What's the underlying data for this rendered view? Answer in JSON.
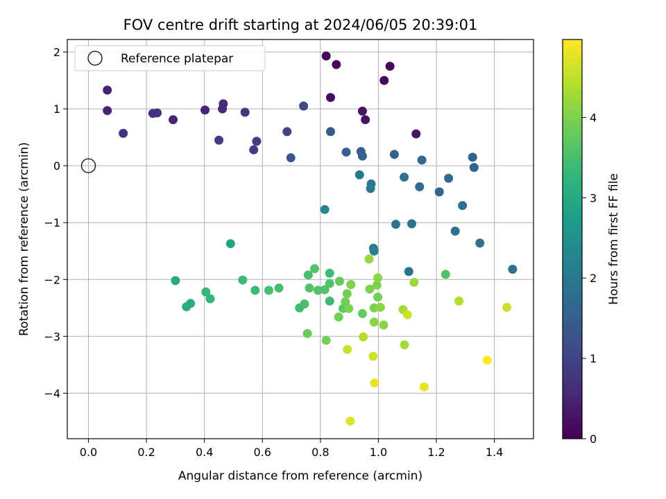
{
  "chart_data": {
    "type": "scatter",
    "title": "FOV centre drift starting at 2024/06/05 20:39:01",
    "xlabel": "Angular distance from reference (arcmin)",
    "ylabel": "Rotation from reference (arcmin)",
    "xlim": [
      -0.073,
      1.535
    ],
    "ylim": [
      -4.8,
      2.22
    ],
    "x_ticks": [
      0.0,
      0.2,
      0.4,
      0.6,
      0.8,
      1.0,
      1.2,
      1.4
    ],
    "x_tick_labels": [
      "0.0",
      "0.2",
      "0.4",
      "0.6",
      "0.8",
      "1.0",
      "1.2",
      "1.4"
    ],
    "y_ticks": [
      2,
      1,
      0,
      -1,
      -2,
      -3,
      -4
    ],
    "y_tick_labels": [
      "2",
      "1",
      "0",
      "−1",
      "−2",
      "−3",
      "−4"
    ],
    "grid": true,
    "legend": {
      "placement": "top-left",
      "entries": [
        "Reference platepar"
      ]
    },
    "reference_point": {
      "x": 0.0,
      "y": 0.0
    },
    "colormap": "viridis",
    "colorbar": {
      "label": "Hours from first FF file",
      "range": [
        0,
        4.97
      ],
      "ticks": [
        0,
        1,
        2,
        3,
        4
      ],
      "tick_labels": [
        "0",
        "1",
        "2",
        "3",
        "4"
      ]
    },
    "point_fields": [
      "x",
      "y",
      "hours"
    ],
    "points": [
      [
        0.82,
        1.93,
        0.1
      ],
      [
        0.855,
        1.78,
        0.1
      ],
      [
        1.04,
        1.75,
        0.1
      ],
      [
        1.02,
        1.5,
        0.15
      ],
      [
        0.835,
        1.2,
        0.2
      ],
      [
        0.945,
        0.96,
        0.25
      ],
      [
        0.955,
        0.81,
        0.25
      ],
      [
        1.13,
        0.56,
        0.3
      ],
      [
        0.065,
        1.33,
        0.5
      ],
      [
        0.065,
        0.97,
        0.5
      ],
      [
        0.12,
        0.57,
        0.7
      ],
      [
        0.222,
        0.92,
        0.7
      ],
      [
        0.237,
        0.93,
        0.7
      ],
      [
        0.292,
        0.81,
        0.5
      ],
      [
        0.402,
        0.98,
        0.5
      ],
      [
        0.465,
        1.09,
        0.6
      ],
      [
        0.462,
        1.0,
        0.6
      ],
      [
        0.54,
        0.94,
        0.8
      ],
      [
        0.45,
        0.45,
        0.9
      ],
      [
        0.58,
        0.43,
        0.9
      ],
      [
        0.57,
        0.28,
        0.9
      ],
      [
        0.685,
        0.6,
        1.0
      ],
      [
        0.742,
        1.05,
        1.1
      ],
      [
        0.698,
        0.14,
        1.3
      ],
      [
        0.835,
        0.6,
        1.4
      ],
      [
        0.889,
        0.24,
        1.5
      ],
      [
        0.94,
        0.25,
        1.5
      ],
      [
        0.945,
        0.17,
        1.5
      ],
      [
        1.055,
        0.2,
        1.6
      ],
      [
        1.15,
        0.1,
        1.7
      ],
      [
        1.325,
        0.15,
        1.6
      ],
      [
        1.33,
        -0.03,
        1.6
      ],
      [
        1.089,
        -0.2,
        1.9
      ],
      [
        1.142,
        -0.37,
        1.7
      ],
      [
        1.242,
        -0.22,
        1.7
      ],
      [
        1.21,
        -0.46,
        1.6
      ],
      [
        0.935,
        -0.16,
        2.0
      ],
      [
        0.975,
        -0.32,
        2.0
      ],
      [
        0.973,
        -0.4,
        2.0
      ],
      [
        1.29,
        -0.7,
        1.8
      ],
      [
        1.06,
        -1.03,
        1.9
      ],
      [
        1.115,
        -1.02,
        1.9
      ],
      [
        1.265,
        -1.15,
        1.8
      ],
      [
        1.35,
        -1.36,
        1.8
      ],
      [
        0.983,
        -1.45,
        2.1
      ],
      [
        0.985,
        -1.5,
        2.1
      ],
      [
        1.105,
        -1.86,
        1.9
      ],
      [
        1.463,
        -1.82,
        1.9
      ],
      [
        0.815,
        -0.77,
        2.3
      ],
      [
        0.49,
        -1.37,
        2.9
      ],
      [
        0.3,
        -2.02,
        3.0
      ],
      [
        0.338,
        -2.48,
        3.1
      ],
      [
        0.352,
        -2.42,
        3.1
      ],
      [
        0.405,
        -2.22,
        3.3
      ],
      [
        0.42,
        -2.34,
        3.3
      ],
      [
        0.532,
        -2.01,
        3.4
      ],
      [
        0.575,
        -2.19,
        3.4
      ],
      [
        0.622,
        -2.19,
        3.5
      ],
      [
        0.657,
        -2.15,
        3.5
      ],
      [
        0.728,
        -2.5,
        3.4
      ],
      [
        0.745,
        -2.43,
        3.5
      ],
      [
        0.758,
        -1.92,
        3.5
      ],
      [
        0.762,
        -2.15,
        3.6
      ],
      [
        0.78,
        -1.81,
        3.6
      ],
      [
        0.792,
        -2.19,
        3.6
      ],
      [
        0.815,
        -2.18,
        3.6
      ],
      [
        0.832,
        -1.89,
        3.4
      ],
      [
        0.832,
        -2.07,
        3.6
      ],
      [
        0.832,
        -2.38,
        3.4
      ],
      [
        0.866,
        -2.03,
        3.8
      ],
      [
        0.878,
        -2.51,
        3.7
      ],
      [
        0.886,
        -2.39,
        3.9
      ],
      [
        0.892,
        -2.25,
        3.9
      ],
      [
        0.905,
        -2.09,
        4.0
      ],
      [
        0.863,
        -2.66,
        3.9
      ],
      [
        0.898,
        -2.51,
        4.0
      ],
      [
        0.755,
        -2.95,
        3.8
      ],
      [
        0.82,
        -3.07,
        3.9
      ],
      [
        0.945,
        -2.6,
        3.8
      ],
      [
        0.97,
        -2.17,
        4.0
      ],
      [
        0.968,
        -1.64,
        4.2
      ],
      [
        0.995,
        -2.1,
        4.0
      ],
      [
        0.998,
        -1.97,
        4.1
      ],
      [
        0.998,
        -2.31,
        3.9
      ],
      [
        0.985,
        -2.5,
        4.0
      ],
      [
        1.007,
        -2.49,
        4.1
      ],
      [
        0.985,
        -2.75,
        4.1
      ],
      [
        1.018,
        -2.8,
        4.1
      ],
      [
        1.123,
        -2.05,
        4.2
      ],
      [
        1.085,
        -2.53,
        4.3
      ],
      [
        1.1,
        -2.62,
        4.6
      ],
      [
        1.09,
        -3.15,
        4.3
      ],
      [
        1.232,
        -1.91,
        3.6
      ],
      [
        1.278,
        -2.38,
        4.4
      ],
      [
        0.948,
        -3.01,
        4.4
      ],
      [
        0.893,
        -3.23,
        4.6
      ],
      [
        0.982,
        -3.35,
        4.6
      ],
      [
        0.987,
        -3.82,
        4.8
      ],
      [
        0.903,
        -4.49,
        4.7
      ],
      [
        1.158,
        -3.89,
        4.8
      ],
      [
        1.375,
        -3.42,
        4.95
      ],
      [
        1.443,
        -2.49,
        4.6
      ]
    ]
  }
}
